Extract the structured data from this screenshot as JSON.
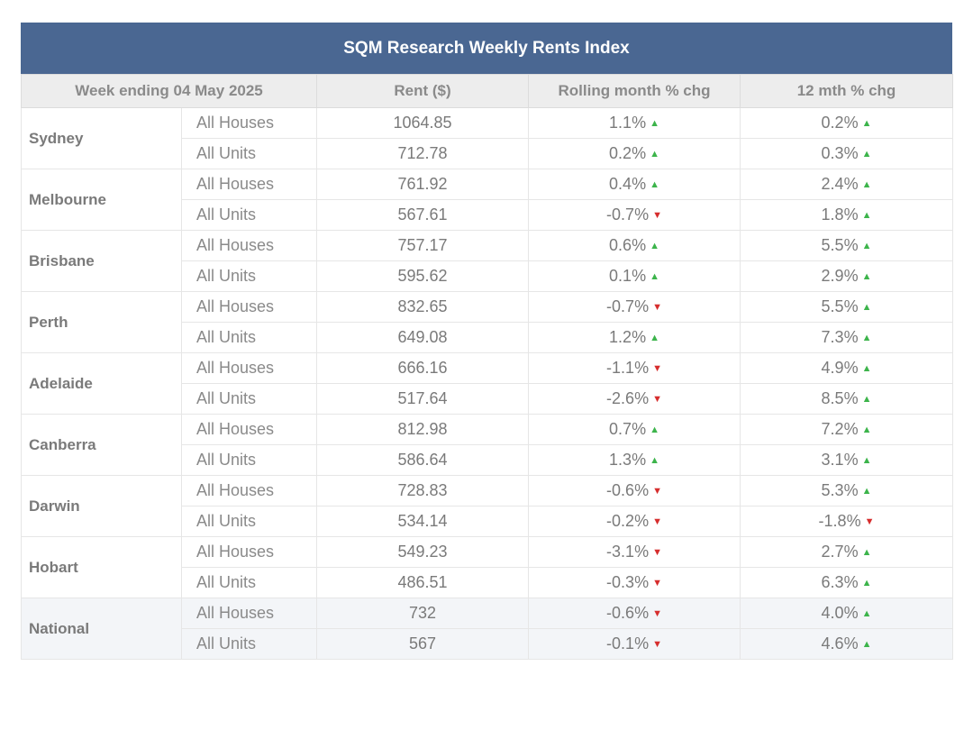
{
  "title": "SQM Research Weekly Rents Index",
  "headers": {
    "week": "Week ending 04 May 2025",
    "rent": "Rent ($)",
    "rolling": "Rolling month % chg",
    "twelve": "12 mth % chg"
  },
  "colors": {
    "header": "#4a6792",
    "up": "#3cb44b",
    "down": "#d62d2d"
  },
  "rows": [
    {
      "city": "Sydney",
      "type": "All Houses",
      "rent": "1064.85",
      "rolling": "1.1%",
      "rolling_dir": "up",
      "twelve": "0.2%",
      "twelve_dir": "up"
    },
    {
      "city": "",
      "type": "All Units",
      "rent": "712.78",
      "rolling": "0.2%",
      "rolling_dir": "up",
      "twelve": "0.3%",
      "twelve_dir": "up"
    },
    {
      "city": "Melbourne",
      "type": "All Houses",
      "rent": "761.92",
      "rolling": "0.4%",
      "rolling_dir": "up",
      "twelve": "2.4%",
      "twelve_dir": "up"
    },
    {
      "city": "",
      "type": "All Units",
      "rent": "567.61",
      "rolling": "-0.7%",
      "rolling_dir": "down",
      "twelve": "1.8%",
      "twelve_dir": "up"
    },
    {
      "city": "Brisbane",
      "type": "All Houses",
      "rent": "757.17",
      "rolling": "0.6%",
      "rolling_dir": "up",
      "twelve": "5.5%",
      "twelve_dir": "up"
    },
    {
      "city": "",
      "type": "All Units",
      "rent": "595.62",
      "rolling": "0.1%",
      "rolling_dir": "up",
      "twelve": "2.9%",
      "twelve_dir": "up"
    },
    {
      "city": "Perth",
      "type": "All Houses",
      "rent": "832.65",
      "rolling": "-0.7%",
      "rolling_dir": "down",
      "twelve": "5.5%",
      "twelve_dir": "up"
    },
    {
      "city": "",
      "type": "All Units",
      "rent": "649.08",
      "rolling": "1.2%",
      "rolling_dir": "up",
      "twelve": "7.3%",
      "twelve_dir": "up"
    },
    {
      "city": "Adelaide",
      "type": "All Houses",
      "rent": "666.16",
      "rolling": "-1.1%",
      "rolling_dir": "down",
      "twelve": "4.9%",
      "twelve_dir": "up"
    },
    {
      "city": "",
      "type": "All Units",
      "rent": "517.64",
      "rolling": "-2.6%",
      "rolling_dir": "down",
      "twelve": "8.5%",
      "twelve_dir": "up"
    },
    {
      "city": "Canberra",
      "type": "All Houses",
      "rent": "812.98",
      "rolling": "0.7%",
      "rolling_dir": "up",
      "twelve": "7.2%",
      "twelve_dir": "up"
    },
    {
      "city": "",
      "type": "All Units",
      "rent": "586.64",
      "rolling": "1.3%",
      "rolling_dir": "up",
      "twelve": "3.1%",
      "twelve_dir": "up"
    },
    {
      "city": "Darwin",
      "type": "All Houses",
      "rent": "728.83",
      "rolling": "-0.6%",
      "rolling_dir": "down",
      "twelve": "5.3%",
      "twelve_dir": "up"
    },
    {
      "city": "",
      "type": "All Units",
      "rent": "534.14",
      "rolling": "-0.2%",
      "rolling_dir": "down",
      "twelve": "-1.8%",
      "twelve_dir": "down"
    },
    {
      "city": "Hobart",
      "type": "All Houses",
      "rent": "549.23",
      "rolling": "-3.1%",
      "rolling_dir": "down",
      "twelve": "2.7%",
      "twelve_dir": "up"
    },
    {
      "city": "",
      "type": "All Units",
      "rent": "486.51",
      "rolling": "-0.3%",
      "rolling_dir": "down",
      "twelve": "6.3%",
      "twelve_dir": "up"
    },
    {
      "city": "National",
      "type": "All Houses",
      "rent": "732",
      "rolling": "-0.6%",
      "rolling_dir": "down",
      "twelve": "4.0%",
      "twelve_dir": "up"
    },
    {
      "city": "",
      "type": "All Units",
      "rent": "567",
      "rolling": "-0.1%",
      "rolling_dir": "down",
      "twelve": "4.6%",
      "twelve_dir": "up"
    }
  ]
}
